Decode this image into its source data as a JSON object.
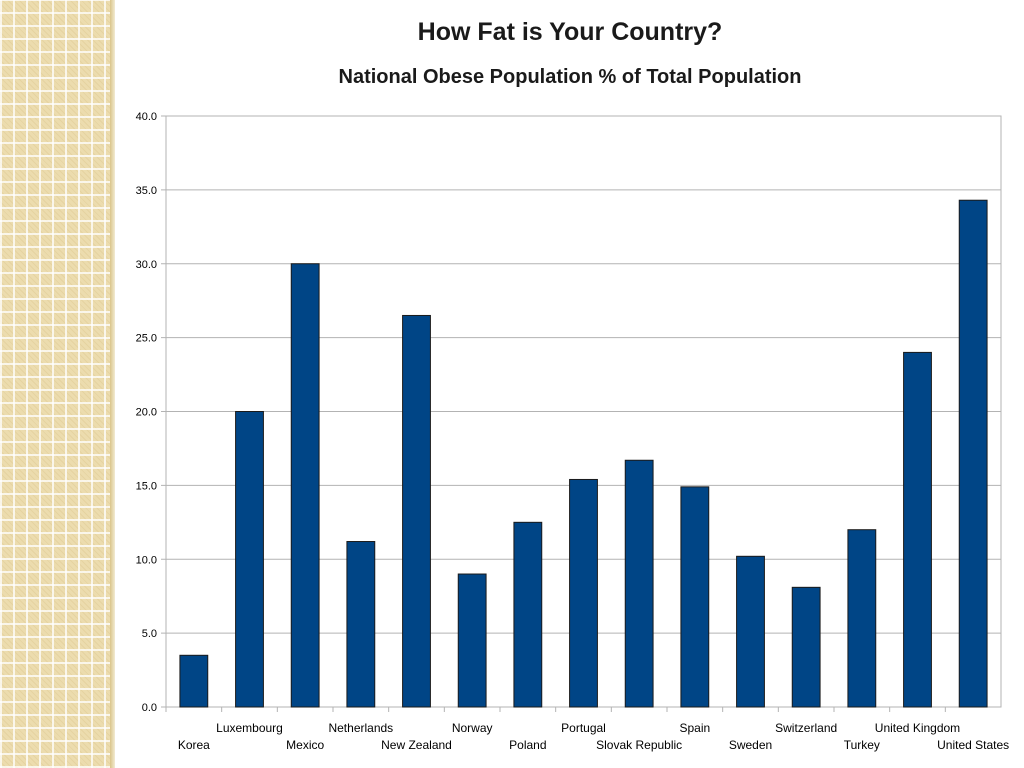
{
  "chart_data": {
    "type": "bar",
    "title": "How Fat is Your Country?",
    "subtitle": "National Obese Population % of Total Population",
    "xlabel": "",
    "ylabel": "",
    "ylim": [
      0,
      40
    ],
    "ytick_step": 5,
    "ytick_labels": [
      "0.0",
      "5.0",
      "10.0",
      "15.0",
      "20.0",
      "25.0",
      "30.0",
      "35.0",
      "40.0"
    ],
    "grid": true,
    "bar_color": "#004586",
    "categories": [
      "Korea",
      "Luxembourg",
      "Mexico",
      "Netherlands",
      "New Zealand",
      "Norway",
      "Poland",
      "Portugal",
      "Slovak Republic",
      "Spain",
      "Sweden",
      "Switzerland",
      "Turkey",
      "United Kingdom",
      "United States"
    ],
    "values": [
      3.5,
      20.0,
      30.0,
      11.2,
      26.5,
      9.0,
      12.5,
      15.4,
      16.7,
      14.9,
      10.2,
      8.1,
      12.0,
      24.0,
      34.3
    ]
  }
}
